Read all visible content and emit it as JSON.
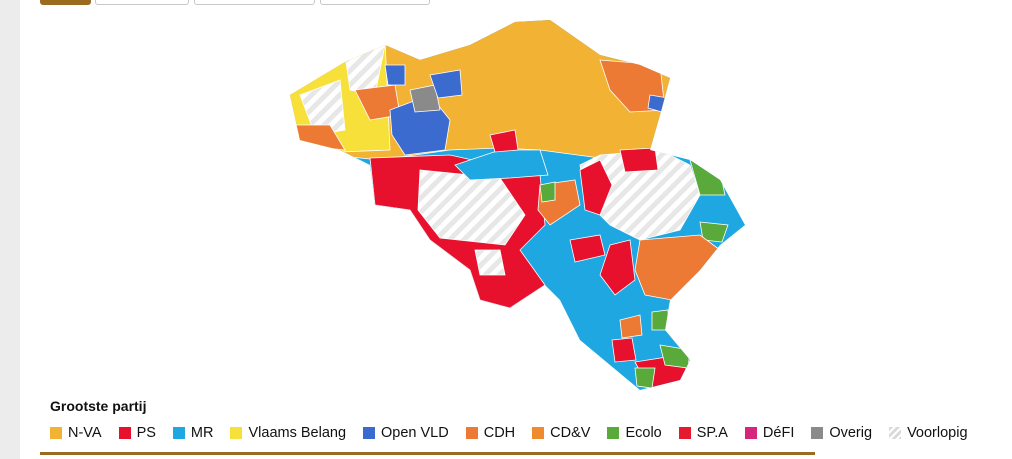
{
  "legend": {
    "title": "Grootste partij",
    "items": [
      {
        "label": "N-VA",
        "color": "#f2b233"
      },
      {
        "label": "PS",
        "color": "#e8112d"
      },
      {
        "label": "MR",
        "color": "#1ea7e1"
      },
      {
        "label": "Vlaams Belang",
        "color": "#f7e03a"
      },
      {
        "label": "Open VLD",
        "color": "#3c6bcf"
      },
      {
        "label": "CDH",
        "color": "#ec7a35"
      },
      {
        "label": "CD&V",
        "color": "#f08a2e"
      },
      {
        "label": "Ecolo",
        "color": "#5aa93b"
      },
      {
        "label": "SP.A",
        "color": "#e51a2e"
      },
      {
        "label": "DéFI",
        "color": "#d6247f"
      },
      {
        "label": "Overig",
        "color": "#8a8a8a"
      },
      {
        "label": "Voorlopig",
        "color": "#d9d9d9",
        "pattern": "hatch"
      }
    ]
  }
}
